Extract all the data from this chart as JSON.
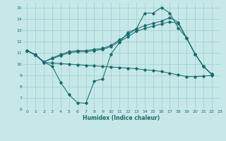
{
  "xlabel": "Humidex (Indice chaleur)",
  "xlim": [
    -0.5,
    23
  ],
  "ylim": [
    6,
    15.4
  ],
  "xticks": [
    0,
    1,
    2,
    3,
    4,
    5,
    6,
    7,
    8,
    9,
    10,
    11,
    12,
    13,
    14,
    15,
    16,
    17,
    18,
    19,
    20,
    21,
    22,
    23
  ],
  "yticks": [
    6,
    7,
    8,
    9,
    10,
    11,
    12,
    13,
    14,
    15
  ],
  "bg_color": "#c6e8e8",
  "grid_color": "#9ecece",
  "line_color": "#1a6b6b",
  "line1_x": [
    0,
    1,
    2,
    3,
    4,
    5,
    6,
    7,
    8,
    9,
    10,
    11,
    12,
    13,
    14,
    15,
    16,
    17,
    18,
    19,
    20,
    21,
    22
  ],
  "line1_y": [
    11.2,
    10.8,
    10.2,
    9.8,
    8.4,
    7.3,
    6.6,
    6.55,
    8.5,
    8.7,
    10.9,
    11.9,
    12.8,
    13.1,
    14.5,
    14.5,
    15.0,
    14.5,
    13.2,
    12.3,
    10.9,
    9.8,
    9.1
  ],
  "line2_x": [
    0,
    1,
    2,
    3,
    4,
    5,
    6,
    7,
    8,
    9,
    10,
    11,
    12,
    13,
    14,
    15,
    16,
    17,
    18,
    19,
    20,
    21,
    22
  ],
  "line2_y": [
    11.2,
    10.8,
    10.15,
    10.1,
    10.05,
    10.0,
    9.95,
    9.9,
    9.85,
    9.8,
    9.75,
    9.7,
    9.65,
    9.6,
    9.5,
    9.45,
    9.35,
    9.2,
    9.05,
    8.9,
    8.9,
    8.95,
    9.0
  ],
  "line3_x": [
    0,
    1,
    2,
    3,
    4,
    5,
    6,
    7,
    8,
    9,
    10,
    11,
    12,
    13,
    14,
    15,
    16,
    17,
    18,
    19,
    20,
    21,
    22
  ],
  "line3_y": [
    11.2,
    10.8,
    10.2,
    10.5,
    10.75,
    11.0,
    11.1,
    11.1,
    11.2,
    11.3,
    11.55,
    12.0,
    12.4,
    12.9,
    13.15,
    13.35,
    13.55,
    13.75,
    13.6,
    12.3,
    10.9,
    9.8,
    9.1
  ],
  "line4_x": [
    0,
    1,
    2,
    3,
    4,
    5,
    6,
    7,
    8,
    9,
    10,
    11,
    12,
    13,
    14,
    15,
    16,
    17,
    18,
    19,
    20,
    21,
    22
  ],
  "line4_y": [
    11.2,
    10.85,
    10.2,
    10.55,
    10.85,
    11.1,
    11.2,
    11.2,
    11.3,
    11.4,
    11.65,
    12.15,
    12.6,
    13.1,
    13.4,
    13.6,
    13.8,
    14.1,
    13.7,
    12.3,
    10.9,
    9.8,
    9.1
  ]
}
